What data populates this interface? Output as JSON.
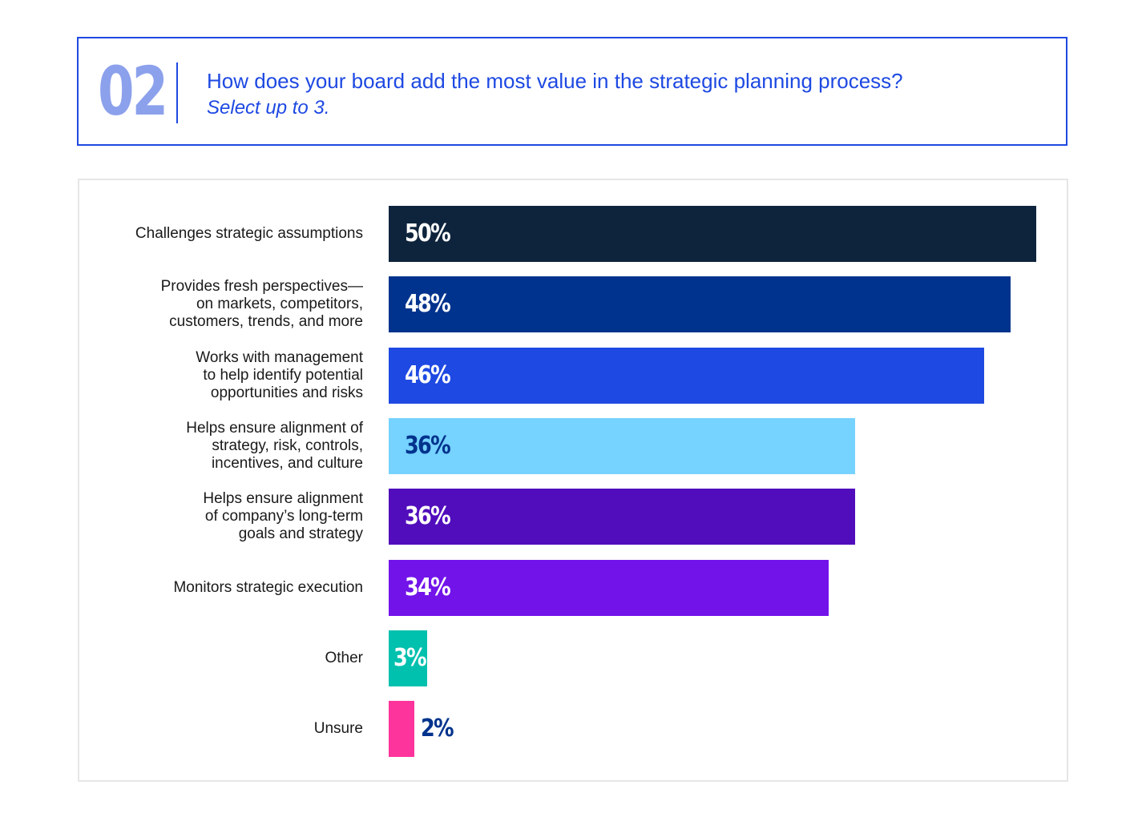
{
  "header": {
    "number": "02",
    "title": "How does your board add the most value in the strategic planning process?",
    "subtitle": "Select up to 3."
  },
  "colors": {
    "accent": "#1e49e2",
    "number": "#8ca1ec",
    "panel_border": "#e6e6e6"
  },
  "chart_data": {
    "type": "bar",
    "orientation": "horizontal",
    "xlim": [
      0,
      50
    ],
    "grid": false,
    "categories": [
      "Challenges strategic assumptions",
      "Provides fresh perspectives—\non markets, competitors,\ncustomers, trends, and more",
      "Works with management\nto help identify potential\nopportunities and risks",
      "Helps ensure alignment of\nstrategy, risk, controls,\nincentives, and culture",
      "Helps ensure alignment\nof company’s long-term\ngoals and strategy",
      "Monitors strategic execution",
      "Other",
      "Unsure"
    ],
    "values": [
      50,
      48,
      46,
      36,
      36,
      34,
      3,
      2
    ],
    "value_labels": [
      "50%",
      "48%",
      "46%",
      "36%",
      "36%",
      "34%",
      "3%",
      "2%"
    ],
    "bar_colors": [
      "#0e243c",
      "#00338d",
      "#1e49e2",
      "#76d2ff",
      "#510dbc",
      "#7213ea",
      "#00c0ae",
      "#fd349c"
    ],
    "label_colors": [
      "#ffffff",
      "#ffffff",
      "#ffffff",
      "#00338d",
      "#ffffff",
      "#ffffff",
      "#ffffff",
      "#00338d"
    ]
  }
}
